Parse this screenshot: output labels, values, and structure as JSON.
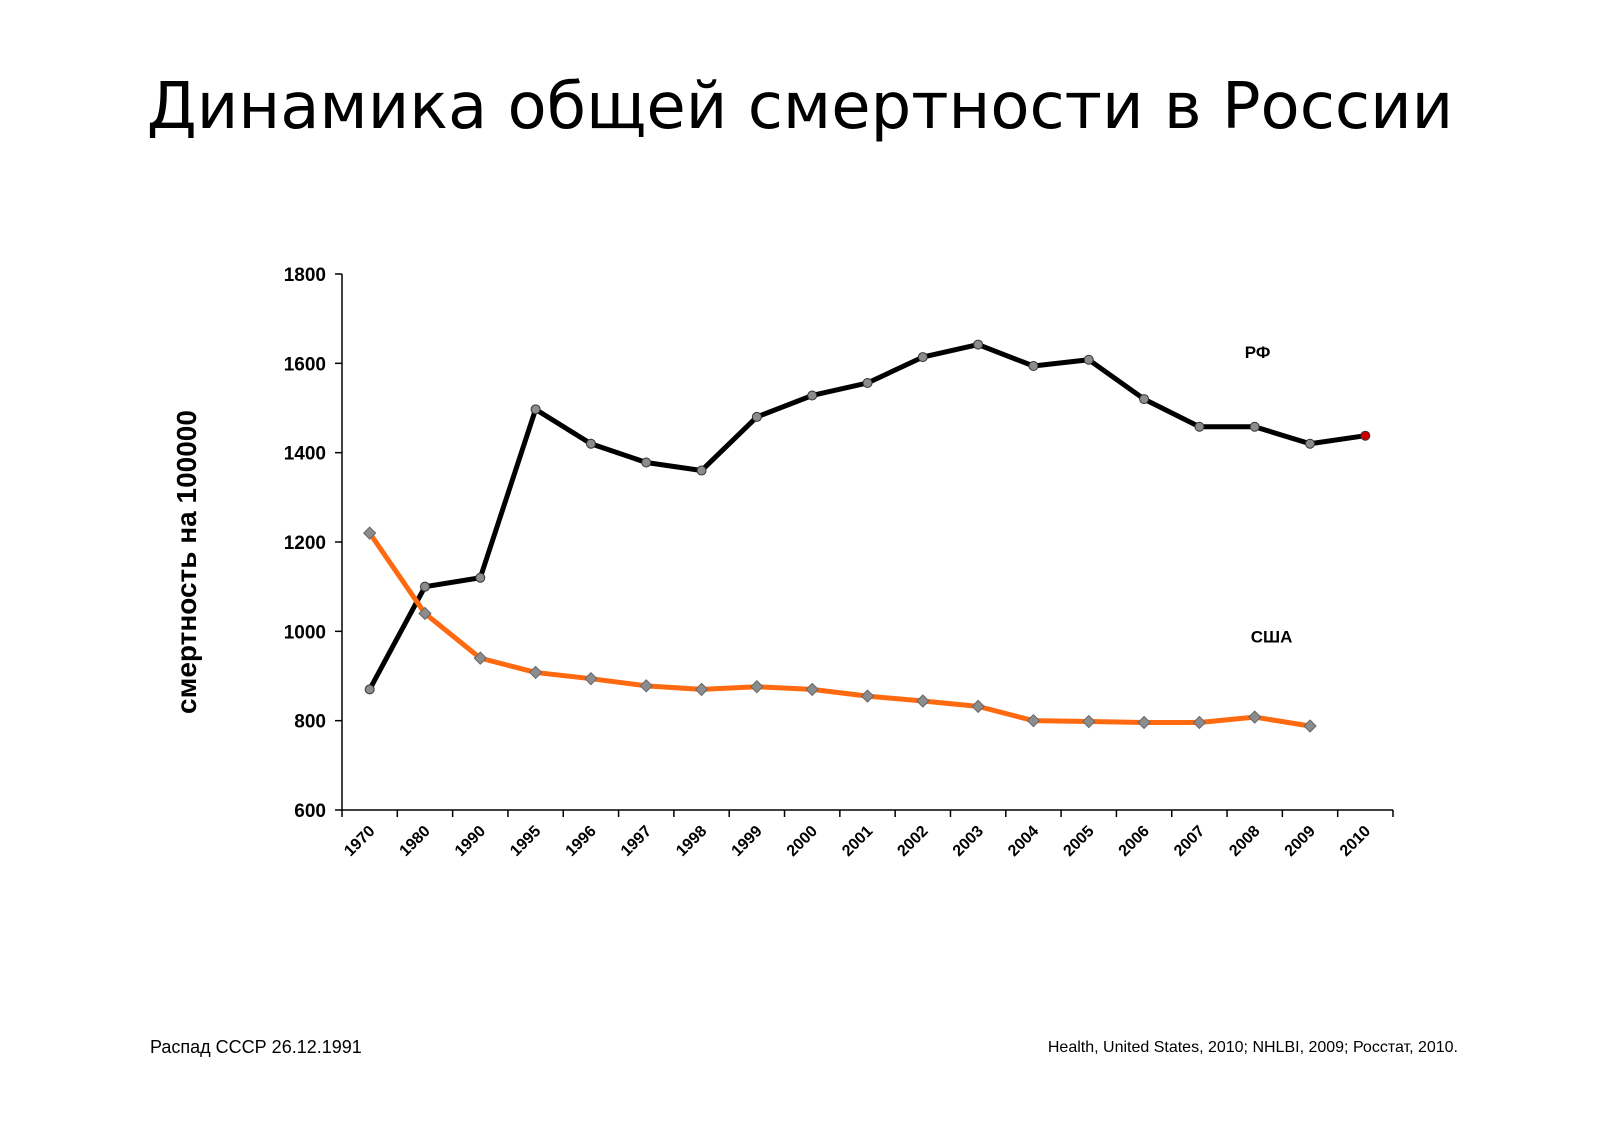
{
  "slide": {
    "title": "Динамика общей смертности в России",
    "footnote_left": "Распад СССР 26.12.1991",
    "footnote_right": "Health, United States, 2010; NHLBI, 2009; Росстат, 2010."
  },
  "chart_data": {
    "type": "line",
    "title": "",
    "xlabel": "",
    "ylabel": "смертность на 100000",
    "ylim": [
      600,
      1800
    ],
    "yticks": [
      600,
      800,
      1000,
      1200,
      1400,
      1600,
      1800
    ],
    "grid": false,
    "categories": [
      "1970",
      "1980",
      "1990",
      "1995",
      "1996",
      "1997",
      "1998",
      "1999",
      "2000",
      "2001",
      "2002",
      "2003",
      "2004",
      "2005",
      "2006",
      "2007",
      "2008",
      "2009",
      "2010"
    ],
    "series": [
      {
        "name": "РФ",
        "color": "#000000",
        "marker": "circle",
        "marker_color": "#8c8c8c",
        "last_marker_color": "#cc0000",
        "values": [
          870,
          1100,
          1120,
          1497,
          1420,
          1378,
          1360,
          1480,
          1528,
          1556,
          1614,
          1642,
          1594,
          1608,
          1520,
          1458,
          1458,
          1420,
          1438
        ]
      },
      {
        "name": "США",
        "color": "#ff6a10",
        "marker": "diamond",
        "marker_color": "#8c8c8c",
        "values": [
          1220,
          1040,
          940,
          908,
          894,
          878,
          870,
          876,
          870,
          855,
          844,
          832,
          800,
          798,
          796,
          796,
          808,
          788,
          null
        ]
      }
    ]
  }
}
